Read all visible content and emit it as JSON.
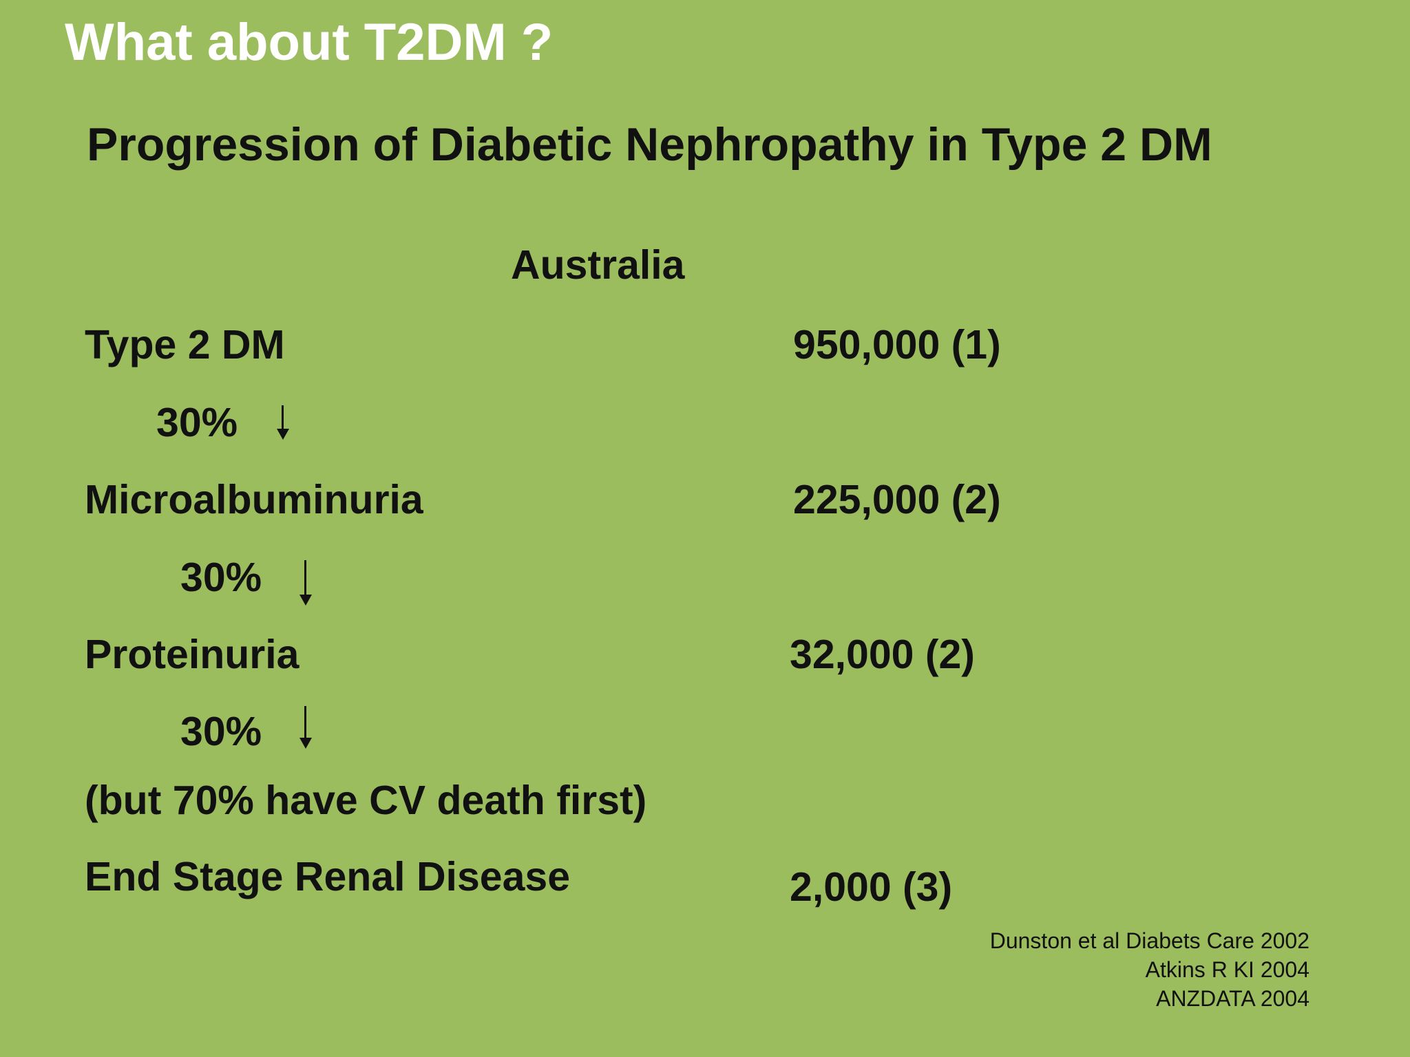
{
  "slide": {
    "title": "What about T2DM ?",
    "subtitle": "Progression of Diabetic Nephropathy in Type 2 DM",
    "region_heading": "Australia",
    "stages": [
      {
        "label": "Type 2 DM",
        "value": "950,000 (1)"
      },
      {
        "label": "Microalbuminuria",
        "value": "225,000 (2)"
      },
      {
        "label": "Proteinuria",
        "value": "32,000 (2)"
      },
      {
        "label": "End Stage Renal Disease",
        "value": "2,000 (3)"
      }
    ],
    "transitions": [
      {
        "percent": "30%",
        "icon": "down-arrow-icon"
      },
      {
        "percent": "30%",
        "icon": "down-arrow-icon"
      },
      {
        "percent": "30%",
        "icon": "down-arrow-icon"
      }
    ],
    "note": "(but 70% have CV death first)",
    "references": [
      "Dunston et al Diabets Care 2002",
      "Atkins R KI 2004",
      "ANZDATA 2004"
    ],
    "colors": {
      "background": "#9cbd5e",
      "title": "#ffffff",
      "text": "#111111"
    }
  }
}
